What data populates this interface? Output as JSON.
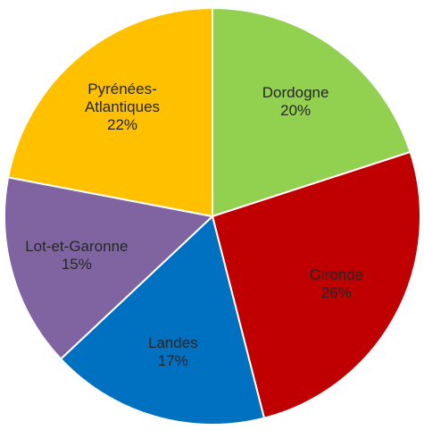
{
  "chart_data": {
    "type": "pie",
    "categories": [
      "Dordogne",
      "Gironde",
      "Landes",
      "Lot-et-Garonne",
      "Pyrénées-Atlantiques"
    ],
    "values": [
      20,
      26,
      17,
      15,
      22
    ],
    "value_labels": [
      "20%",
      "26%",
      "17%",
      "15%",
      "22%"
    ],
    "colors": [
      "#92d050",
      "#c00000",
      "#0070c0",
      "#8064a2",
      "#ffc000"
    ]
  }
}
